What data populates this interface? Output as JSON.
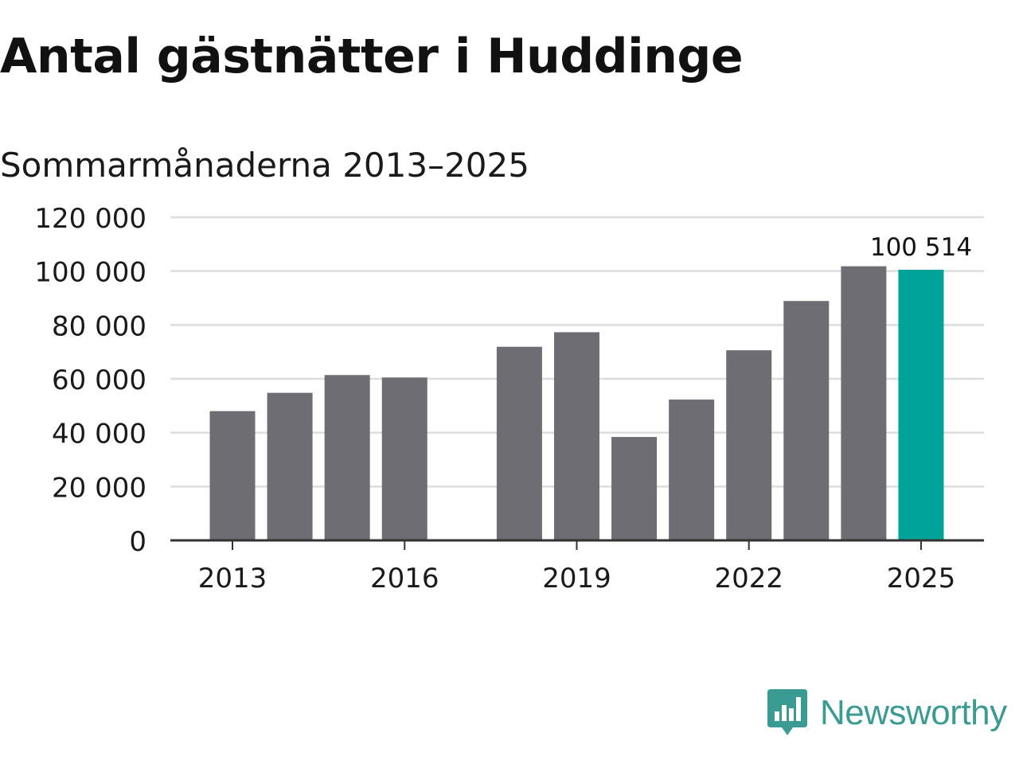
{
  "title": "Antal gästnätter i Huddinge",
  "subtitle": "Sommarmånaderna 2013–2025",
  "brand": {
    "name": "Newsworthy",
    "icon": "newsworthy-logo-icon",
    "color": "#3a9b92"
  },
  "colors": {
    "bar": "#6e6d73",
    "highlight": "#00a398",
    "grid": "#dddddd",
    "axis": "#333333",
    "text": "#1a1a1a"
  },
  "chart_data": {
    "type": "bar",
    "categories": [
      "2013",
      "2014",
      "2015",
      "2016",
      "2017",
      "2018",
      "2019",
      "2020",
      "2021",
      "2022",
      "2023",
      "2024",
      "2025"
    ],
    "values": [
      48000,
      54800,
      61400,
      60500,
      null,
      71900,
      77300,
      38400,
      52300,
      70600,
      88900,
      101800,
      100514
    ],
    "highlight_index": 12,
    "data_labels": [
      {
        "index": 12,
        "text": "100 514"
      }
    ],
    "ylim": [
      0,
      120000
    ],
    "yticks": [
      0,
      20000,
      40000,
      60000,
      80000,
      100000,
      120000
    ],
    "ytick_labels": [
      "0",
      "20 000",
      "40 000",
      "60 000",
      "80 000",
      "100 000",
      "120 000"
    ],
    "xtick_labels": [
      "2013",
      "2016",
      "2019",
      "2022",
      "2025"
    ],
    "grid": true,
    "legend": "none"
  }
}
